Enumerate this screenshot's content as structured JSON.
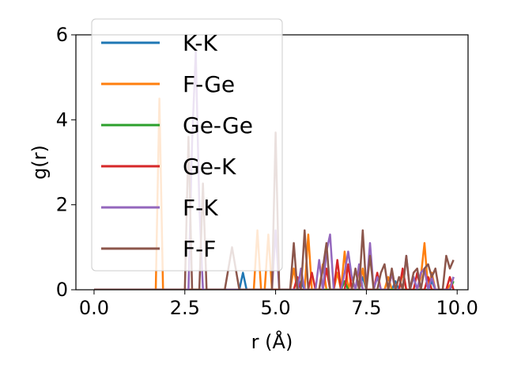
{
  "chart_data": {
    "type": "line",
    "title": "",
    "xlabel": "r (Å)",
    "ylabel": "g(r)",
    "xlim": [
      -0.5,
      10.3
    ],
    "ylim": [
      0,
      6
    ],
    "xticks": [
      "0.0",
      "2.5",
      "5.0",
      "7.5",
      "10.0"
    ],
    "xtick_values": [
      0,
      2.5,
      5,
      7.5,
      10
    ],
    "yticks": [
      "0",
      "2",
      "4",
      "6"
    ],
    "ytick_values": [
      0,
      2,
      4,
      6
    ],
    "grid": false,
    "legend_position": "upper-left",
    "x": [
      0.0,
      0.5,
      1.0,
      1.5,
      1.7,
      1.8,
      1.9,
      2.0,
      2.3,
      2.5,
      2.6,
      2.7,
      2.8,
      2.9,
      3.0,
      3.1,
      3.2,
      3.4,
      3.6,
      3.8,
      4.0,
      4.1,
      4.2,
      4.4,
      4.5,
      4.6,
      4.7,
      4.8,
      4.9,
      5.0,
      5.1,
      5.2,
      5.3,
      5.4,
      5.5,
      5.6,
      5.7,
      5.8,
      5.9,
      6.0,
      6.1,
      6.2,
      6.3,
      6.4,
      6.5,
      6.6,
      6.7,
      6.8,
      6.9,
      7.0,
      7.1,
      7.2,
      7.3,
      7.4,
      7.5,
      7.6,
      7.7,
      7.8,
      7.9,
      8.0,
      8.1,
      8.2,
      8.3,
      8.4,
      8.5,
      8.6,
      8.7,
      8.8,
      8.9,
      9.0,
      9.1,
      9.2,
      9.3,
      9.4,
      9.5,
      9.6,
      9.7,
      9.8,
      9.9
    ],
    "series": [
      {
        "name": "K-K",
        "color": "#1f77b4",
        "values": [
          0,
          0,
          0,
          0,
          0,
          0,
          0,
          0,
          0,
          0,
          0,
          0,
          0,
          0,
          0,
          0,
          0,
          0,
          0,
          0,
          0,
          0.4,
          0,
          0,
          0,
          0,
          0,
          0,
          0,
          0,
          0,
          0,
          0,
          0,
          0,
          0,
          0.2,
          0,
          0,
          0,
          0,
          0,
          0,
          0,
          0,
          0,
          0,
          0,
          0,
          0,
          0,
          0,
          0,
          0.3,
          0,
          0,
          0,
          0,
          0,
          0,
          0,
          0,
          0.2,
          0,
          0,
          0,
          0,
          0.3,
          0,
          0,
          0,
          0,
          0.2,
          0,
          0,
          0,
          0,
          0,
          0.3
        ]
      },
      {
        "name": "F-Ge",
        "color": "#ff7f0e",
        "values": [
          0,
          0,
          0,
          0,
          0,
          4.5,
          0,
          0,
          0,
          0,
          0,
          0,
          0,
          0,
          0,
          0,
          0,
          0,
          0,
          0,
          0,
          0,
          0,
          0,
          1.4,
          0,
          0,
          1.3,
          0,
          0,
          0,
          0,
          0,
          0,
          0.5,
          0,
          0,
          0,
          1.3,
          0,
          0,
          0,
          0.6,
          0,
          0,
          0,
          0.4,
          0,
          0.9,
          0,
          0.3,
          0,
          0,
          0.5,
          0,
          0,
          0,
          0,
          0,
          0,
          0.3,
          0,
          0,
          0,
          0.4,
          0,
          0,
          0,
          0,
          0.3,
          1.1,
          0,
          0.4,
          0,
          0,
          0,
          0,
          0.1,
          0.2
        ]
      },
      {
        "name": "Ge-Ge",
        "color": "#2ca02c",
        "values": [
          0,
          0,
          0,
          0,
          0,
          0,
          0,
          0,
          0,
          0,
          0,
          0,
          0,
          0,
          0,
          0,
          0,
          0,
          0,
          0,
          0,
          0,
          0,
          0,
          0,
          0,
          0,
          0,
          0,
          0,
          0,
          0,
          0,
          0,
          0,
          0,
          0,
          0,
          0,
          0,
          0,
          0,
          0,
          0,
          0,
          0,
          0,
          0,
          0.2,
          0,
          0,
          0,
          0,
          0,
          0,
          0,
          0,
          0,
          0,
          0,
          0,
          0,
          0,
          0,
          0,
          0,
          0,
          0,
          0,
          0,
          0,
          0,
          0,
          0,
          0,
          0,
          0,
          0,
          0.2
        ]
      },
      {
        "name": "Ge-K",
        "color": "#d62728",
        "values": [
          0,
          0,
          0,
          0,
          0,
          0,
          0,
          0,
          0,
          0,
          0,
          0,
          0,
          0,
          0,
          0,
          0,
          0,
          0,
          0,
          0,
          0,
          0,
          0,
          0,
          0,
          0,
          0,
          0,
          0,
          0,
          0,
          0,
          0,
          0,
          0.3,
          0,
          0,
          0,
          0.4,
          0,
          0,
          0,
          0.5,
          0,
          0,
          0.7,
          0,
          0,
          0.6,
          0,
          0,
          0.5,
          0,
          0,
          0,
          0,
          0.4,
          0,
          0,
          0,
          0.4,
          0,
          0,
          0.5,
          0,
          0,
          0,
          0.4,
          0,
          0,
          0.3,
          0,
          0,
          0,
          0,
          0,
          0.3,
          0
        ]
      },
      {
        "name": "F-K",
        "color": "#9467bd",
        "values": [
          0,
          0,
          0,
          0,
          0,
          0,
          0,
          0,
          0,
          0,
          0,
          3.5,
          5.6,
          2.0,
          0,
          0,
          0,
          0,
          0,
          0,
          0,
          0,
          0,
          0,
          0,
          0,
          0,
          0,
          0,
          1.4,
          0,
          0,
          0,
          0,
          0,
          0,
          0.5,
          0,
          0,
          0,
          0,
          0.7,
          0,
          0.9,
          1.3,
          0,
          0,
          0,
          0.4,
          0.9,
          0.3,
          0,
          0.6,
          0,
          0,
          1.1,
          0,
          0.3,
          0,
          0,
          0,
          0.4,
          0,
          0,
          0,
          0.8,
          0,
          0.3,
          0,
          0.4,
          0.5,
          0,
          0.3,
          0,
          0,
          0,
          0,
          0,
          0.3
        ]
      },
      {
        "name": "F-F",
        "color": "#8c564b",
        "values": [
          0,
          0,
          0,
          0,
          0,
          0,
          0,
          0,
          0,
          0,
          3.6,
          0,
          0,
          0,
          2.5,
          0,
          0,
          0,
          0,
          1.0,
          0,
          0,
          0,
          0,
          0,
          0,
          0,
          0,
          0,
          3.7,
          0,
          0,
          0,
          0,
          1.1,
          0,
          0,
          1.4,
          0,
          0,
          0,
          0,
          0.5,
          1.1,
          0,
          0,
          0,
          0,
          0,
          0,
          0,
          0.5,
          0,
          1.4,
          0,
          0.8,
          0,
          0,
          0.4,
          0.6,
          0,
          0.5,
          0,
          0.3,
          0,
          0.8,
          0,
          0.4,
          0.5,
          0,
          0.5,
          0.6,
          0.3,
          0.5,
          0,
          0,
          0.8,
          0.5,
          0.7
        ]
      }
    ]
  }
}
